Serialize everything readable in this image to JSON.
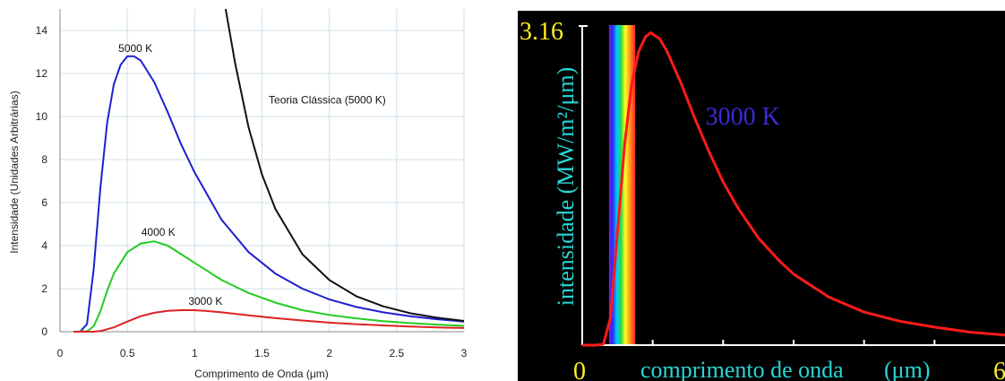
{
  "chart_data": [
    {
      "type": "line",
      "xlabel": "Comprimento de Onda (μm)",
      "ylabel": "Intensidade (Unidades Arbitrárias)",
      "xlim": [
        0,
        3
      ],
      "ylim": [
        0,
        15
      ],
      "xticks": [
        "0",
        "0.5",
        "1",
        "1.5",
        "2",
        "2.5",
        "3"
      ],
      "yticks": [
        "0",
        "2",
        "4",
        "6",
        "8",
        "10",
        "12",
        "14"
      ],
      "grid": true,
      "series": [
        {
          "name": "5000 K",
          "color": "#1f1fcf",
          "points": [
            [
              0.1,
              0.0
            ],
            [
              0.15,
              0.0
            ],
            [
              0.2,
              0.35
            ],
            [
              0.25,
              2.9
            ],
            [
              0.3,
              6.7
            ],
            [
              0.35,
              9.7
            ],
            [
              0.4,
              11.5
            ],
            [
              0.45,
              12.4
            ],
            [
              0.5,
              12.8
            ],
            [
              0.55,
              12.8
            ],
            [
              0.6,
              12.6
            ],
            [
              0.7,
              11.6
            ],
            [
              0.8,
              10.2
            ],
            [
              0.9,
              8.7
            ],
            [
              1.0,
              7.4
            ],
            [
              1.2,
              5.2
            ],
            [
              1.4,
              3.7
            ],
            [
              1.6,
              2.7
            ],
            [
              1.8,
              2.0
            ],
            [
              2.0,
              1.5
            ],
            [
              2.2,
              1.15
            ],
            [
              2.4,
              0.9
            ],
            [
              2.6,
              0.72
            ],
            [
              2.8,
              0.58
            ],
            [
              3.0,
              0.47
            ]
          ]
        },
        {
          "name": "4000 K",
          "color": "#22cc22",
          "points": [
            [
              0.1,
              0.0
            ],
            [
              0.2,
              0.02
            ],
            [
              0.25,
              0.25
            ],
            [
              0.3,
              0.95
            ],
            [
              0.35,
              1.9
            ],
            [
              0.4,
              2.7
            ],
            [
              0.5,
              3.7
            ],
            [
              0.6,
              4.1
            ],
            [
              0.7,
              4.2
            ],
            [
              0.8,
              4.0
            ],
            [
              0.9,
              3.6
            ],
            [
              1.0,
              3.2
            ],
            [
              1.2,
              2.4
            ],
            [
              1.4,
              1.8
            ],
            [
              1.6,
              1.35
            ],
            [
              1.8,
              1.0
            ],
            [
              2.0,
              0.78
            ],
            [
              2.2,
              0.62
            ],
            [
              2.4,
              0.49
            ],
            [
              2.6,
              0.4
            ],
            [
              2.8,
              0.33
            ],
            [
              3.0,
              0.27
            ]
          ]
        },
        {
          "name": "3000 K",
          "color": "#dd2222",
          "points": [
            [
              0.1,
              0.0
            ],
            [
              0.25,
              0.0
            ],
            [
              0.3,
              0.03
            ],
            [
              0.4,
              0.2
            ],
            [
              0.5,
              0.47
            ],
            [
              0.6,
              0.72
            ],
            [
              0.7,
              0.88
            ],
            [
              0.8,
              0.97
            ],
            [
              0.9,
              1.0
            ],
            [
              1.0,
              1.0
            ],
            [
              1.1,
              0.96
            ],
            [
              1.2,
              0.9
            ],
            [
              1.4,
              0.76
            ],
            [
              1.6,
              0.63
            ],
            [
              1.8,
              0.52
            ],
            [
              2.0,
              0.42
            ],
            [
              2.2,
              0.35
            ],
            [
              2.4,
              0.29
            ],
            [
              2.6,
              0.24
            ],
            [
              2.8,
              0.2
            ],
            [
              3.0,
              0.17
            ]
          ]
        },
        {
          "name": "Teoria Clássica (5000 K)",
          "color": "#111111",
          "points": [
            [
              1.23,
              15.0
            ],
            [
              1.3,
              12.5
            ],
            [
              1.4,
              9.5
            ],
            [
              1.5,
              7.3
            ],
            [
              1.6,
              5.7
            ],
            [
              1.8,
              3.6
            ],
            [
              2.0,
              2.4
            ],
            [
              2.2,
              1.65
            ],
            [
              2.4,
              1.18
            ],
            [
              2.6,
              0.86
            ],
            [
              2.8,
              0.65
            ],
            [
              3.0,
              0.5
            ]
          ]
        }
      ],
      "annotations": [
        {
          "text": "5000 K",
          "x": 0.56,
          "y": 13.0
        },
        {
          "text": "4000 K",
          "x": 0.73,
          "y": 4.45
        },
        {
          "text": "3000 K",
          "x": 1.08,
          "y": 1.25
        },
        {
          "text": "Teoria Clássica (5000 K)",
          "x": 1.55,
          "y": 10.6
        }
      ]
    },
    {
      "type": "line",
      "xlabel": "comprimento de onda",
      "xlabel_unit": "(μm)",
      "ylabel": "intensidade (MW/m²/μm)",
      "y_max_label": "3.16",
      "x_min_label": "0",
      "x_max_label": "6",
      "xlim": [
        0,
        6
      ],
      "ylim": [
        0,
        3.16
      ],
      "xticks": [
        1,
        2,
        3,
        4,
        5
      ],
      "background": "#000000",
      "visible_band": [
        0.38,
        0.75
      ],
      "series": [
        {
          "name": "3000 K",
          "color": "#ff1a1a",
          "points": [
            [
              0.0,
              0.0
            ],
            [
              0.2,
              0.0
            ],
            [
              0.3,
              0.01
            ],
            [
              0.4,
              0.27
            ],
            [
              0.5,
              1.12
            ],
            [
              0.6,
              1.99
            ],
            [
              0.7,
              2.6
            ],
            [
              0.8,
              2.93
            ],
            [
              0.9,
              3.08
            ],
            [
              0.97,
              3.12
            ],
            [
              1.1,
              3.06
            ],
            [
              1.2,
              2.94
            ],
            [
              1.4,
              2.62
            ],
            [
              1.6,
              2.26
            ],
            [
              1.8,
              1.93
            ],
            [
              2.0,
              1.63
            ],
            [
              2.2,
              1.38
            ],
            [
              2.5,
              1.07
            ],
            [
              2.8,
              0.84
            ],
            [
              3.0,
              0.71
            ],
            [
              3.5,
              0.48
            ],
            [
              4.0,
              0.33
            ],
            [
              4.5,
              0.24
            ],
            [
              5.0,
              0.18
            ],
            [
              5.5,
              0.13
            ],
            [
              6.0,
              0.1
            ]
          ]
        }
      ],
      "annotations": [
        {
          "text": "3000 K",
          "x": 1.75,
          "y": 2.2,
          "color": "#3a2ad8"
        }
      ],
      "colors": {
        "y_max_label": "#ffee22",
        "x_end_labels": "#ffee22",
        "axis_titles": "#2ad6d6",
        "axes": "#ffffff"
      }
    }
  ]
}
